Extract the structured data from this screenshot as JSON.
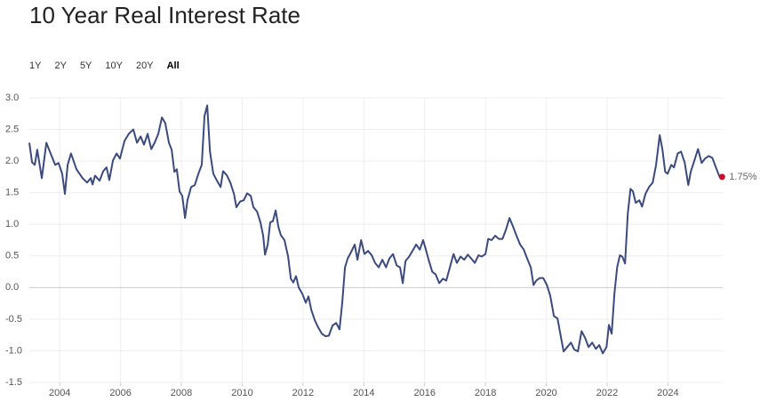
{
  "chart_data": {
    "type": "line",
    "title": "10 Year Real Interest Rate",
    "range_buttons": [
      {
        "label": "1Y",
        "selected": false
      },
      {
        "label": "2Y",
        "selected": false
      },
      {
        "label": "5Y",
        "selected": false
      },
      {
        "label": "10Y",
        "selected": false
      },
      {
        "label": "20Y",
        "selected": false
      },
      {
        "label": "All",
        "selected": true
      }
    ],
    "color": "#3b4a7f",
    "end_marker_color": "#c8102e",
    "grid": true,
    "xlim": [
      2003,
      2025.8
    ],
    "xticks": [
      2004,
      2006,
      2008,
      2010,
      2012,
      2014,
      2016,
      2018,
      2020,
      2022,
      2024
    ],
    "ylim": [
      -1.5,
      3.0
    ],
    "yticks": [
      {
        "value": -1.5,
        "label": "-1.5"
      },
      {
        "value": -1.0,
        "label": "-1.0"
      },
      {
        "value": -0.5,
        "label": "-0.5"
      },
      {
        "value": 0,
        "label": "0.0"
      },
      {
        "value": 0.5,
        "label": "0.5"
      },
      {
        "value": 1.0,
        "label": "1.0"
      },
      {
        "value": 1.5,
        "label": "1.5"
      },
      {
        "value": 2.0,
        "label": "2.0"
      },
      {
        "value": 2.5,
        "label": "2.5"
      },
      {
        "value": 3.0,
        "label": "3.0"
      }
    ],
    "end_label": {
      "value": 1.75,
      "label": "1.75%"
    },
    "x": [
      2003.0,
      2003.09,
      2003.18,
      2003.26,
      2003.41,
      2003.56,
      2003.7,
      2003.85,
      2003.96,
      2004.08,
      2004.17,
      2004.26,
      2004.37,
      2004.55,
      2004.75,
      2004.9,
      2005.02,
      2005.08,
      2005.16,
      2005.31,
      2005.43,
      2005.54,
      2005.63,
      2005.75,
      2005.87,
      2005.98,
      2006.13,
      2006.27,
      2006.42,
      2006.54,
      2006.66,
      2006.77,
      2006.89,
      2007.01,
      2007.12,
      2007.24,
      2007.36,
      2007.47,
      2007.59,
      2007.68,
      2007.77,
      2007.85,
      2007.94,
      2008.03,
      2008.12,
      2008.2,
      2008.32,
      2008.44,
      2008.56,
      2008.67,
      2008.76,
      2008.85,
      2008.94,
      2009.05,
      2009.17,
      2009.29,
      2009.37,
      2009.49,
      2009.61,
      2009.73,
      2009.81,
      2009.93,
      2010.05,
      2010.16,
      2010.28,
      2010.37,
      2010.49,
      2010.6,
      2010.69,
      2010.75,
      2010.84,
      2010.92,
      2011.01,
      2011.1,
      2011.19,
      2011.27,
      2011.39,
      2011.51,
      2011.6,
      2011.68,
      2011.77,
      2011.86,
      2011.98,
      2012.09,
      2012.18,
      2012.27,
      2012.39,
      2012.5,
      2012.62,
      2012.74,
      2012.85,
      2012.97,
      2013.09,
      2013.2,
      2013.29,
      2013.38,
      2013.47,
      2013.58,
      2013.7,
      2013.79,
      2013.91,
      2014.02,
      2014.14,
      2014.26,
      2014.37,
      2014.49,
      2014.61,
      2014.73,
      2014.84,
      2014.96,
      2015.08,
      2015.19,
      2015.28,
      2015.37,
      2015.49,
      2015.6,
      2015.72,
      2015.84,
      2015.95,
      2016.04,
      2016.13,
      2016.25,
      2016.36,
      2016.48,
      2016.6,
      2016.71,
      2016.83,
      2016.95,
      2017.06,
      2017.18,
      2017.3,
      2017.42,
      2017.53,
      2017.65,
      2017.77,
      2017.88,
      2018.0,
      2018.09,
      2018.2,
      2018.32,
      2018.44,
      2018.56,
      2018.67,
      2018.79,
      2018.91,
      2019.02,
      2019.14,
      2019.26,
      2019.37,
      2019.49,
      2019.58,
      2019.67,
      2019.78,
      2019.9,
      2020.02,
      2020.13,
      2020.25,
      2020.37,
      2020.46,
      2020.57,
      2020.69,
      2020.81,
      2020.92,
      2021.04,
      2021.16,
      2021.28,
      2021.39,
      2021.51,
      2021.63,
      2021.74,
      2021.86,
      2021.98,
      2022.06,
      2022.15,
      2022.24,
      2022.33,
      2022.42,
      2022.5,
      2022.59,
      2022.68,
      2022.77,
      2022.85,
      2022.94,
      2023.06,
      2023.15,
      2023.26,
      2023.38,
      2023.5,
      2023.61,
      2023.73,
      2023.82,
      2023.91,
      2023.99,
      2024.11,
      2024.2,
      2024.32,
      2024.43,
      2024.55,
      2024.67,
      2024.75,
      2024.87,
      2024.99,
      2025.11,
      2025.22,
      2025.34,
      2025.46,
      2025.57,
      2025.69,
      2025.78
    ],
    "values": [
      2.29,
      1.98,
      1.94,
      2.18,
      1.73,
      2.29,
      2.12,
      1.94,
      1.97,
      1.8,
      1.48,
      1.94,
      2.12,
      1.87,
      1.73,
      1.66,
      1.73,
      1.63,
      1.77,
      1.69,
      1.84,
      1.9,
      1.7,
      2.01,
      2.12,
      2.04,
      2.32,
      2.43,
      2.5,
      2.29,
      2.39,
      2.26,
      2.43,
      2.19,
      2.29,
      2.43,
      2.69,
      2.6,
      2.29,
      2.18,
      1.83,
      1.87,
      1.52,
      1.45,
      1.1,
      1.38,
      1.59,
      1.62,
      1.8,
      1.94,
      2.71,
      2.88,
      2.15,
      1.8,
      1.69,
      1.59,
      1.84,
      1.78,
      1.66,
      1.48,
      1.27,
      1.36,
      1.38,
      1.49,
      1.45,
      1.27,
      1.2,
      1.03,
      0.82,
      0.52,
      0.68,
      1.03,
      1.05,
      1.22,
      0.96,
      0.83,
      0.75,
      0.49,
      0.14,
      0.08,
      0.18,
      0.0,
      -0.1,
      -0.24,
      -0.14,
      -0.35,
      -0.52,
      -0.63,
      -0.73,
      -0.77,
      -0.76,
      -0.6,
      -0.56,
      -0.66,
      -0.24,
      0.32,
      0.46,
      0.56,
      0.68,
      0.44,
      0.75,
      0.53,
      0.58,
      0.51,
      0.39,
      0.32,
      0.44,
      0.32,
      0.46,
      0.53,
      0.35,
      0.32,
      0.07,
      0.42,
      0.49,
      0.58,
      0.68,
      0.6,
      0.75,
      0.6,
      0.44,
      0.25,
      0.21,
      0.07,
      0.14,
      0.11,
      0.32,
      0.53,
      0.39,
      0.49,
      0.44,
      0.52,
      0.46,
      0.39,
      0.51,
      0.49,
      0.53,
      0.77,
      0.75,
      0.82,
      0.77,
      0.77,
      0.91,
      1.1,
      0.96,
      0.82,
      0.68,
      0.6,
      0.46,
      0.32,
      0.04,
      0.11,
      0.15,
      0.15,
      0.04,
      -0.13,
      -0.45,
      -0.49,
      -0.73,
      -1.01,
      -0.94,
      -0.87,
      -0.98,
      -1.01,
      -0.69,
      -0.8,
      -0.94,
      -0.87,
      -0.97,
      -0.91,
      -1.04,
      -0.94,
      -0.59,
      -0.73,
      -0.1,
      0.32,
      0.51,
      0.49,
      0.38,
      1.17,
      1.56,
      1.52,
      1.34,
      1.38,
      1.28,
      1.48,
      1.59,
      1.66,
      1.94,
      2.41,
      2.18,
      1.83,
      1.8,
      1.94,
      1.9,
      2.12,
      2.15,
      1.98,
      1.62,
      1.83,
      2.01,
      2.19,
      1.97,
      2.04,
      2.08,
      2.05,
      1.91,
      1.76,
      1.75
    ]
  }
}
